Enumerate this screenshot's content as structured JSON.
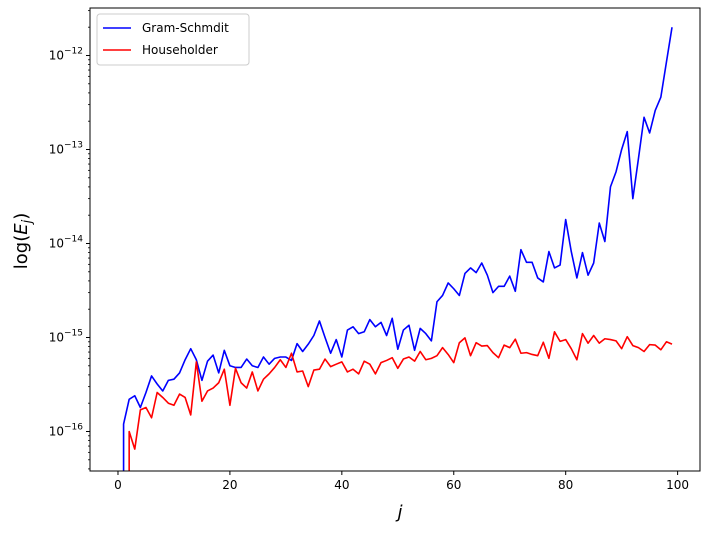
{
  "chart_data": {
    "type": "line",
    "xlabel": "j",
    "ylabel": "log(E_j)",
    "ylabel_parts": {
      "prefix": "log(",
      "main": "E",
      "sub": "j",
      "suffix": ")"
    },
    "yscale": "log",
    "xlim": [
      -5,
      104
    ],
    "ylim": [
      3.8e-17,
      3.2e-12
    ],
    "x_ticks": [
      0,
      20,
      40,
      60,
      80,
      100
    ],
    "x_tick_labels": [
      "0",
      "20",
      "40",
      "60",
      "80",
      "100"
    ],
    "y_ticks": [
      1e-16,
      1e-15,
      1e-14,
      1e-13,
      1e-12
    ],
    "y_tick_labels": [
      {
        "base": "10",
        "exp": "−16"
      },
      {
        "base": "10",
        "exp": "−15"
      },
      {
        "base": "10",
        "exp": "−14"
      },
      {
        "base": "10",
        "exp": "−13"
      },
      {
        "base": "10",
        "exp": "−12"
      }
    ],
    "grid": false,
    "legend_position": "top-left",
    "series": [
      {
        "name": "Gram-Schmdit",
        "color": "#0000ff",
        "x": [
          1,
          1,
          2,
          3,
          4,
          5,
          6,
          7,
          8,
          9,
          10,
          11,
          12,
          13,
          14,
          15,
          16,
          17,
          18,
          19,
          20,
          21,
          22,
          23,
          24,
          25,
          26,
          27,
          28,
          29,
          30,
          31,
          32,
          33,
          34,
          35,
          36,
          37,
          38,
          39,
          40,
          41,
          42,
          43,
          44,
          45,
          46,
          47,
          48,
          49,
          50,
          51,
          52,
          53,
          54,
          55,
          56,
          57,
          58,
          59,
          60,
          61,
          62,
          63,
          64,
          65,
          66,
          67,
          68,
          69,
          70,
          71,
          72,
          73,
          74,
          75,
          76,
          77,
          78,
          79,
          80,
          81,
          82,
          83,
          84,
          85,
          86,
          87,
          88,
          89,
          90,
          91,
          92,
          93,
          94,
          95,
          96,
          97,
          98,
          99
        ],
        "y": [
          1e-17,
          1.2e-16,
          2.2e-16,
          2.4e-16,
          1.8e-16,
          2.6e-16,
          3.9e-16,
          3.2e-16,
          2.7e-16,
          3.5e-16,
          3.6e-16,
          4.2e-16,
          5.8e-16,
          7.6e-16,
          5.8e-16,
          3.5e-16,
          5.6e-16,
          6.5e-16,
          4.2e-16,
          7.3e-16,
          5e-16,
          4.8e-16,
          4.8e-16,
          5.9e-16,
          5e-16,
          4.8e-16,
          6.2e-16,
          5.2e-16,
          6e-16,
          6.2e-16,
          6.2e-16,
          5.7e-16,
          8.6e-16,
          7.1e-16,
          8.5e-16,
          1.05e-15,
          1.5e-15,
          1e-15,
          6.8e-16,
          9.5e-16,
          6.2e-16,
          1.2e-15,
          1.3e-15,
          1.1e-15,
          1.15e-15,
          1.55e-15,
          1.3e-15,
          1.45e-15,
          1.05e-15,
          1.6e-15,
          7.5e-16,
          1.2e-15,
          1.35e-15,
          7.3e-16,
          1.25e-15,
          1.1e-15,
          9.2e-16,
          2.4e-15,
          2.8e-15,
          3.8e-15,
          3.3e-15,
          2.8e-15,
          4.8e-15,
          5.5e-15,
          4.9e-15,
          6.2e-15,
          4.6e-15,
          3e-15,
          3.5e-15,
          3.5e-15,
          4.5e-15,
          3.1e-15,
          8.6e-15,
          6.3e-15,
          6.3e-15,
          4.3e-15,
          3.9e-15,
          8.2e-15,
          5.5e-15,
          5.9e-15,
          1.8e-14,
          8.2e-15,
          4.3e-15,
          8e-15,
          4.6e-15,
          6.2e-15,
          1.65e-14,
          1.05e-14,
          4e-14,
          5.8e-14,
          1e-13,
          1.55e-13,
          3e-14,
          8e-14,
          2.2e-13,
          1.5e-13,
          2.6e-13,
          3.6e-13,
          8.5e-13,
          2e-12
        ]
      },
      {
        "name": "Householder",
        "color": "#ff0000",
        "x": [
          2,
          2,
          3,
          4,
          5,
          6,
          7,
          8,
          9,
          10,
          11,
          12,
          13,
          14,
          15,
          16,
          17,
          18,
          19,
          20,
          21,
          22,
          23,
          24,
          25,
          26,
          27,
          28,
          29,
          30,
          31,
          32,
          33,
          34,
          35,
          36,
          37,
          38,
          39,
          40,
          41,
          42,
          43,
          44,
          45,
          46,
          47,
          48,
          49,
          50,
          51,
          52,
          53,
          54,
          55,
          56,
          57,
          58,
          59,
          60,
          61,
          62,
          63,
          64,
          65,
          66,
          67,
          68,
          69,
          70,
          71,
          72,
          73,
          74,
          75,
          76,
          77,
          78,
          79,
          80,
          81,
          82,
          83,
          84,
          85,
          86,
          87,
          88,
          89,
          90,
          91,
          92,
          93,
          94,
          95,
          96,
          97,
          98,
          99
        ],
        "y": [
          1e-17,
          1e-16,
          6.5e-17,
          1.7e-16,
          1.8e-16,
          1.4e-16,
          2.6e-16,
          2.3e-16,
          2e-16,
          1.9e-16,
          2.5e-16,
          2.3e-16,
          1.5e-16,
          5.5e-16,
          2.1e-16,
          2.7e-16,
          2.9e-16,
          3.3e-16,
          4.6e-16,
          1.9e-16,
          4.7e-16,
          3.3e-16,
          2.9e-16,
          4.3e-16,
          2.7e-16,
          3.6e-16,
          4.1e-16,
          4.8e-16,
          5.8e-16,
          4.8e-16,
          6.8e-16,
          4.3e-16,
          4.4e-16,
          3e-16,
          4.5e-16,
          4.6e-16,
          5.9e-16,
          4.9e-16,
          5.2e-16,
          5.5e-16,
          4.3e-16,
          4.6e-16,
          4.1e-16,
          5.6e-16,
          5.2e-16,
          4.1e-16,
          5.4e-16,
          5.7e-16,
          6.1e-16,
          4.7e-16,
          5.9e-16,
          6.2e-16,
          5.6e-16,
          7.1e-16,
          5.8e-16,
          6e-16,
          6.4e-16,
          7.8e-16,
          6.6e-16,
          5.4e-16,
          8.8e-16,
          9.9e-16,
          6.4e-16,
          8.8e-16,
          8.1e-16,
          8.2e-16,
          6.9e-16,
          6.1e-16,
          8.3e-16,
          7.8e-16,
          9.6e-16,
          6.8e-16,
          6.9e-16,
          6.6e-16,
          6.4e-16,
          8.9e-16,
          6e-16,
          1.15e-15,
          9.1e-16,
          9.5e-16,
          7.6e-16,
          5.8e-16,
          1.1e-15,
          8.7e-16,
          1.05e-15,
          8.7e-16,
          9.7e-16,
          9.5e-16,
          9.2e-16,
          7.6e-16,
          1.02e-15,
          8.2e-16,
          7.8e-16,
          7.1e-16,
          8.4e-16,
          8.3e-16,
          7.4e-16,
          9e-16,
          8.5e-16
        ]
      }
    ]
  }
}
